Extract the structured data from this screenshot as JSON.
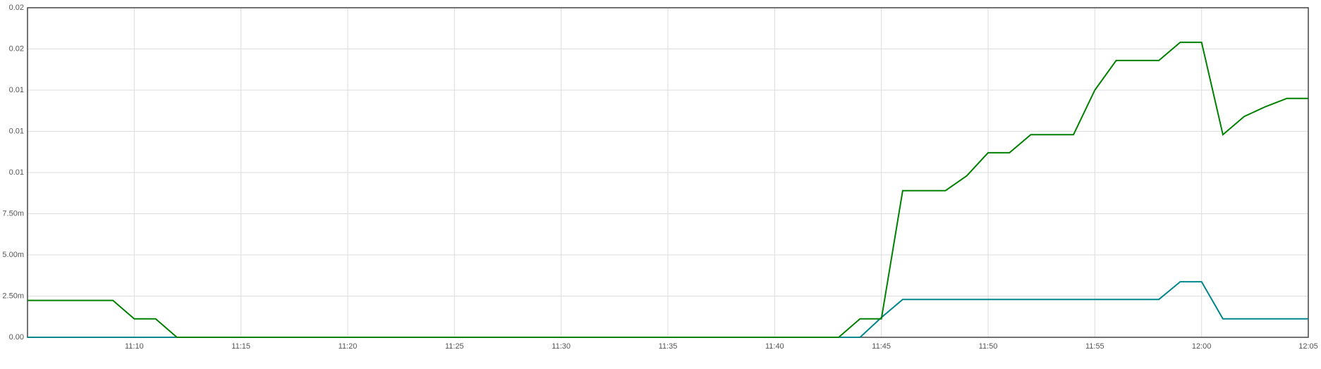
{
  "chart_data": {
    "type": "line",
    "x": [
      "11:05",
      "11:06",
      "11:07",
      "11:08",
      "11:09",
      "11:10",
      "11:11",
      "11:12",
      "11:13",
      "11:14",
      "11:15",
      "11:16",
      "11:17",
      "11:18",
      "11:19",
      "11:20",
      "11:21",
      "11:22",
      "11:23",
      "11:24",
      "11:25",
      "11:26",
      "11:27",
      "11:28",
      "11:29",
      "11:30",
      "11:31",
      "11:32",
      "11:33",
      "11:34",
      "11:35",
      "11:36",
      "11:37",
      "11:38",
      "11:39",
      "11:40",
      "11:41",
      "11:42",
      "11:43",
      "11:44",
      "11:45",
      "11:46",
      "11:47",
      "11:48",
      "11:49",
      "11:50",
      "11:51",
      "11:52",
      "11:53",
      "11:54",
      "11:55",
      "11:56",
      "11:57",
      "11:58",
      "11:59",
      "12:00",
      "12:01",
      "12:02",
      "12:03",
      "12:04",
      "12:05"
    ],
    "series": [
      {
        "color": "#008000",
        "values": [
          0.00224,
          0.00224,
          0.00224,
          0.00224,
          0.00224,
          0.00112,
          0.00112,
          0,
          0,
          0,
          0,
          0,
          0,
          0,
          0,
          0,
          0,
          0,
          0,
          0,
          0,
          0,
          0,
          0,
          0,
          0,
          0,
          0,
          0,
          0,
          0,
          0,
          0,
          0,
          0,
          0,
          0,
          0,
          0,
          0.00112,
          0.00112,
          0.0089,
          0.0089,
          0.0089,
          0.0098,
          0.0112,
          0.0112,
          0.0123,
          0.0123,
          0.0123,
          0.015,
          0.0168,
          0.0168,
          0.0168,
          0.0179,
          0.0179,
          0.0123,
          0.0134,
          0.014,
          0.0145,
          0.0145
        ]
      },
      {
        "color": "#00868b",
        "values": [
          0,
          0,
          0,
          0,
          0,
          0,
          0,
          0,
          0,
          0,
          0,
          0,
          0,
          0,
          0,
          0,
          0,
          0,
          0,
          0,
          0,
          0,
          0,
          0,
          0,
          0,
          0,
          0,
          0,
          0,
          0,
          0,
          0,
          0,
          0,
          0,
          0,
          0,
          0,
          0,
          0.0012,
          0.0023,
          0.0023,
          0.0023,
          0.0023,
          0.0023,
          0.0023,
          0.0023,
          0.0023,
          0.0023,
          0.0023,
          0.0023,
          0.0023,
          0.0023,
          0.00337,
          0.00337,
          0.00112,
          0.00112,
          0.00112,
          0.00112,
          0.00112
        ]
      }
    ],
    "xlim": [
      "11:05",
      "12:05"
    ],
    "xticks": [
      "11:10",
      "11:15",
      "11:20",
      "11:25",
      "11:30",
      "11:35",
      "11:40",
      "11:45",
      "11:50",
      "11:55",
      "12:00",
      "12:05"
    ],
    "ylim": [
      0,
      0.02
    ],
    "yticks": [
      {
        "value": 0,
        "label": "0.00"
      },
      {
        "value": 0.0025,
        "label": "2.50m"
      },
      {
        "value": 0.005,
        "label": "5.00m"
      },
      {
        "value": 0.0075,
        "label": "7.50m"
      },
      {
        "value": 0.01,
        "label": "0.01"
      },
      {
        "value": 0.0125,
        "label": "0.01"
      },
      {
        "value": 0.015,
        "label": "0.01"
      },
      {
        "value": 0.0175,
        "label": "0.02"
      },
      {
        "value": 0.02,
        "label": "0.02"
      }
    ],
    "grid": true
  }
}
